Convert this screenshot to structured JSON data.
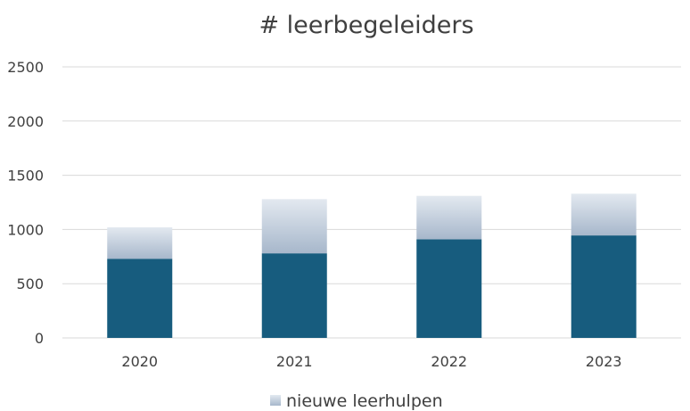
{
  "chart_data": {
    "type": "bar",
    "stacked": true,
    "title": "# leerbegeleiders",
    "xlabel": "",
    "ylabel": "",
    "categories": [
      "2020",
      "2021",
      "2022",
      "2023"
    ],
    "yticks": [
      0,
      500,
      1000,
      1500,
      2000,
      2500
    ],
    "ylim": [
      0,
      2500
    ],
    "grid": true,
    "legend_position": "bottom",
    "series": [
      {
        "values": [
          730,
          780,
          910,
          945
        ],
        "color": "#175c7e"
      },
      {
        "name": "nieuwe leerhulpen",
        "values": [
          290,
          500,
          400,
          385
        ],
        "color": "gradient-light-blue"
      }
    ]
  }
}
